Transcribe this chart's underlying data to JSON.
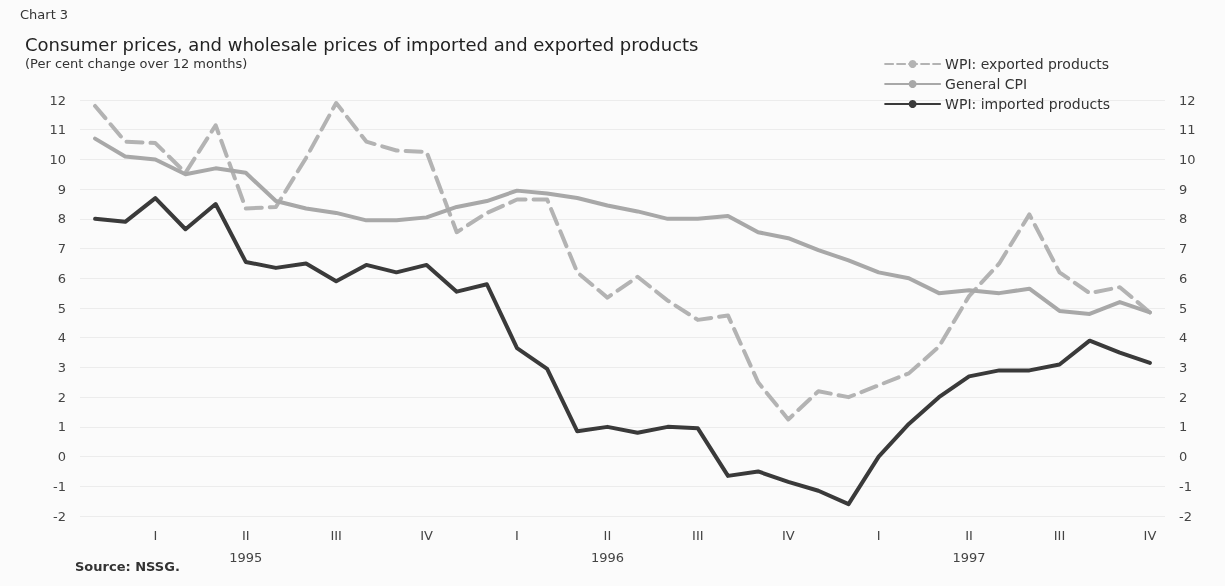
{
  "chart_data": {
    "type": "line",
    "title": "Consumer prices, and wholesale prices of imported and exported products",
    "subtitle": "(Per cent change over 12 months)",
    "annotations": [
      "Chart 3",
      "Source: NSSG."
    ],
    "categories": [
      null,
      null,
      "I",
      null,
      null,
      "II\n1995",
      null,
      null,
      "III",
      null,
      null,
      "IV",
      null,
      null,
      "I",
      null,
      null,
      "II\n1996",
      null,
      null,
      "III",
      null,
      null,
      "IV",
      null,
      null,
      "I",
      null,
      null,
      "II\n1997",
      null,
      null,
      "III",
      null,
      null,
      "IV"
    ],
    "series": [
      {
        "name": "WPI: exported products",
        "color": "#b3b3b3",
        "line_style": "dashed",
        "values": [
          11.8,
          10.6,
          10.55,
          9.55,
          11.15,
          8.35,
          8.4,
          10.05,
          11.9,
          10.6,
          10.3,
          10.25,
          7.55,
          8.2,
          8.65,
          8.65,
          6.2,
          5.35,
          6.05,
          5.25,
          4.6,
          4.75,
          2.5,
          1.25,
          2.2,
          2.0,
          2.4,
          2.8,
          3.7,
          5.4,
          6.5,
          8.15,
          6.2,
          5.5,
          5.7,
          4.85
        ]
      },
      {
        "name": "General CPI",
        "color": "#a8a8a8",
        "line_style": "solid",
        "values": [
          10.7,
          10.1,
          10.0,
          9.5,
          9.7,
          9.55,
          8.6,
          8.35,
          8.2,
          7.95,
          7.95,
          8.05,
          8.4,
          8.6,
          8.95,
          8.85,
          8.7,
          8.45,
          8.25,
          8.0,
          8.0,
          8.1,
          7.55,
          7.35,
          6.95,
          6.6,
          6.2,
          6.0,
          5.5,
          5.6,
          5.5,
          5.65,
          4.9,
          4.8,
          5.2,
          4.85
        ]
      },
      {
        "name": "WPI: imported products",
        "color": "#3a3a3a",
        "line_style": "solid",
        "values": [
          8.0,
          7.9,
          8.7,
          7.65,
          8.5,
          6.55,
          6.35,
          6.5,
          5.9,
          6.45,
          6.2,
          6.45,
          5.55,
          5.8,
          3.65,
          2.95,
          0.85,
          1.0,
          0.8,
          1.0,
          0.95,
          -0.65,
          -0.5,
          -0.85,
          -1.15,
          -1.6,
          0.0,
          1.1,
          2.0,
          2.7,
          2.9,
          2.9,
          3.1,
          3.9,
          3.5,
          3.15
        ]
      }
    ],
    "ylim": [
      -2,
      12
    ],
    "yticks": [
      -2,
      -1,
      0,
      1,
      2,
      3,
      4,
      5,
      6,
      7,
      8,
      9,
      10,
      11,
      12
    ],
    "y2lim": [
      -2,
      12
    ],
    "y2ticks": [
      -2,
      -1,
      0,
      1,
      2,
      3,
      4,
      5,
      6,
      7,
      8,
      9,
      10,
      11,
      12
    ],
    "grid": "y",
    "legend": "top right",
    "marker": "none"
  }
}
